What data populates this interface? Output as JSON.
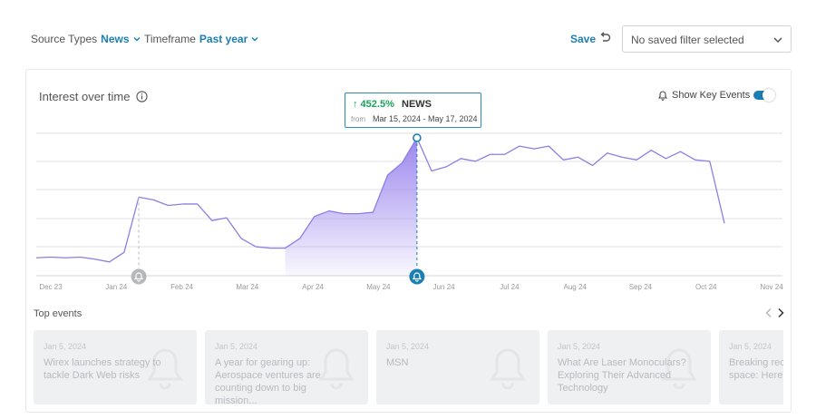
{
  "filters": {
    "source_label": "Source Types",
    "source_value": "News",
    "timeframe_label": "Timeframe",
    "timeframe_value": "Past year",
    "save_label": "Save",
    "saved_filter_placeholder": "No saved filter selected"
  },
  "card": {
    "title": "Interest over time",
    "key_events_label": "Show Key Events",
    "key_events_enabled": true
  },
  "tooltip": {
    "change": "↑ 452.5%",
    "source": "NEWS",
    "from_label": "from",
    "range": "Mar 15, 2024 - May 17, 2024"
  },
  "chart_data": {
    "type": "area",
    "x_ticks": [
      "Dec 23",
      "Jan 24",
      "Feb 24",
      "Mar 24",
      "Apr 24",
      "May 24",
      "Jun 24",
      "Jul 24",
      "Aug 24",
      "Sep 24",
      "Oct 24",
      "Nov 24"
    ],
    "y_range": [
      0,
      100
    ],
    "grid": true,
    "series": [
      {
        "color": "#8f7de6",
        "values": [
          13,
          13.5,
          13,
          13.5,
          12,
          10,
          17,
          57,
          55,
          51,
          52,
          52,
          40,
          42,
          27,
          21,
          20,
          20,
          27,
          43,
          47,
          45,
          45,
          46,
          73,
          82,
          100,
          76,
          79,
          85,
          83,
          88,
          88,
          94,
          92,
          94,
          84,
          86,
          80,
          89,
          86,
          84,
          91,
          85,
          90,
          84,
          83,
          38
        ]
      }
    ],
    "highlight": {
      "start_index": 17,
      "end_index": 26
    },
    "event_markers": [
      7,
      26
    ],
    "colors": {
      "accent": "#1b7fb3",
      "line": "#8f7de6",
      "fill_top": "#9c86ee"
    }
  },
  "top_events": {
    "title": "Top events",
    "items": [
      {
        "date": "Jan 5, 2024",
        "title": "Wirex launches strategy to tackle Dark Web risks"
      },
      {
        "date": "Jan 5, 2024",
        "title": "A year for gearing up: Aerospace ventures are counting down to big mission..."
      },
      {
        "date": "Jan 5, 2024",
        "title": "MSN"
      },
      {
        "date": "Jan 5, 2024",
        "title": "What Are Laser Monoculars? Exploring Their Advanced Technology"
      },
      {
        "date": "Jan 5, 2024",
        "title": "Breaking records: aircrafts and space: Here's"
      }
    ]
  }
}
